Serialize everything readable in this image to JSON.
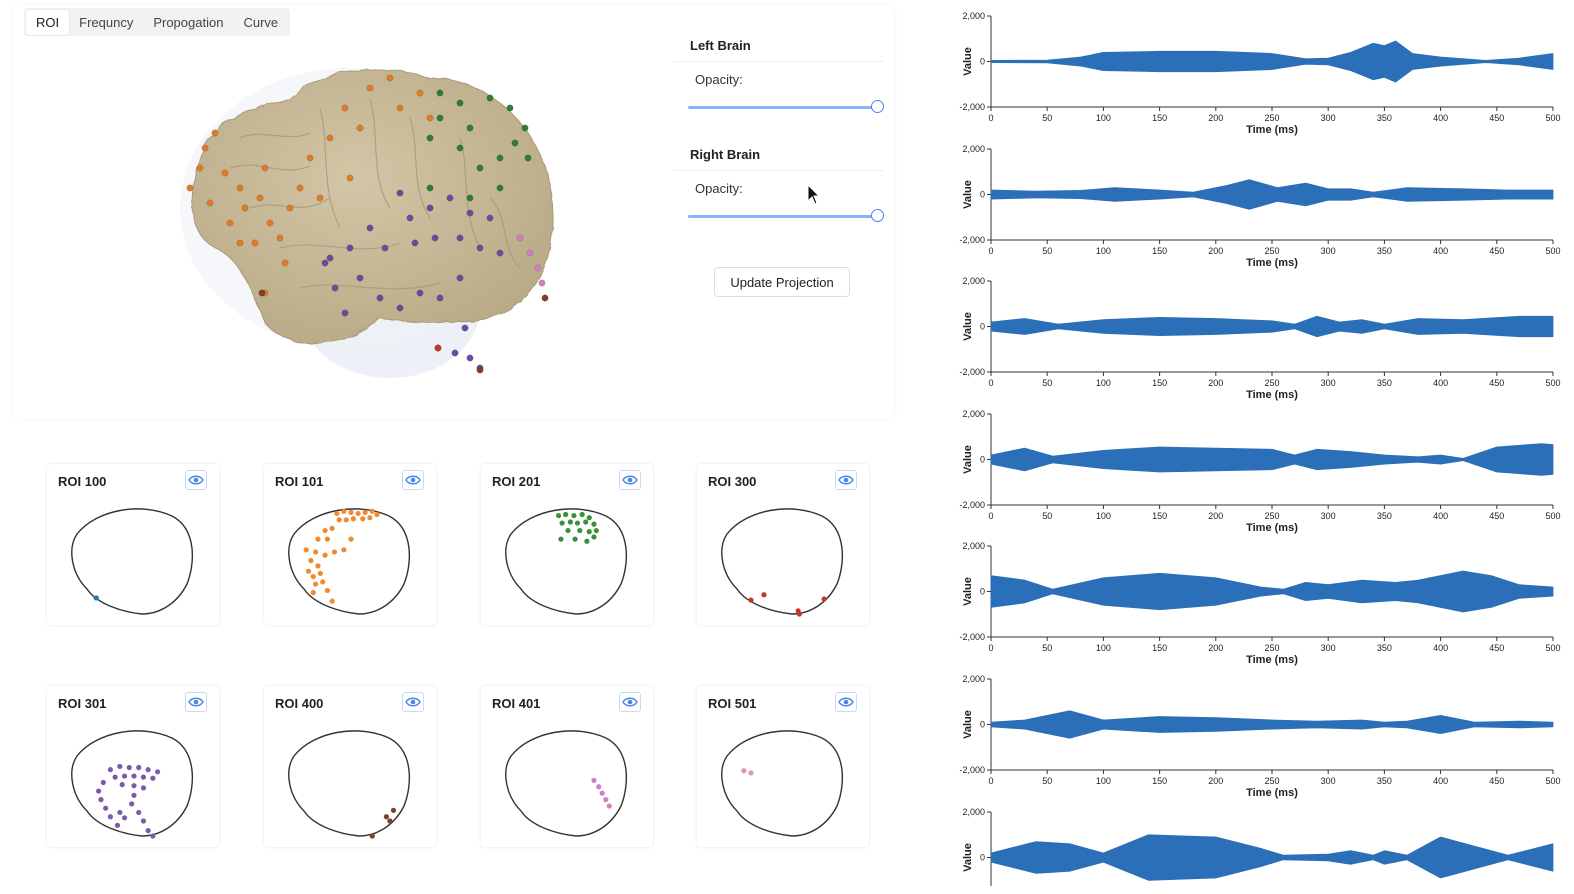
{
  "tabs": [
    {
      "label": "ROI",
      "active": true
    },
    {
      "label": "Frequncy",
      "active": false
    },
    {
      "label": "Propogation",
      "active": false
    },
    {
      "label": "Curve",
      "active": false
    }
  ],
  "controls": {
    "left_brain": {
      "title": "Left Brain",
      "opacity_label": "Opacity:",
      "opacity": 1.0
    },
    "right_brain": {
      "title": "Right Brain",
      "opacity_label": "Opacity:",
      "opacity": 1.0
    },
    "update_button": "Update Projection"
  },
  "icons": {
    "cursor": "mouse-pointer-icon",
    "eye": "eye-icon"
  },
  "colors": {
    "orange": "#e07b2a",
    "green": "#2e7d32",
    "purple": "#6a4c9c",
    "pink": "#d17fc0",
    "red": "#c0392b",
    "blue": "#1f77b4",
    "brown": "#7b3f2b"
  },
  "rois": [
    {
      "title": "ROI 100",
      "color": "#1f77b4",
      "points": [
        [
          0.18,
          0.85
        ]
      ]
    },
    {
      "title": "ROI 101",
      "color": "#f08a2c",
      "points": [
        [
          0.38,
          0.06
        ],
        [
          0.44,
          0.04
        ],
        [
          0.5,
          0.05
        ],
        [
          0.56,
          0.06
        ],
        [
          0.62,
          0.05
        ],
        [
          0.68,
          0.04
        ],
        [
          0.72,
          0.07
        ],
        [
          0.4,
          0.12
        ],
        [
          0.46,
          0.12
        ],
        [
          0.52,
          0.11
        ],
        [
          0.6,
          0.11
        ],
        [
          0.66,
          0.1
        ],
        [
          0.28,
          0.22
        ],
        [
          0.34,
          0.2
        ],
        [
          0.22,
          0.3
        ],
        [
          0.3,
          0.3
        ],
        [
          0.12,
          0.4
        ],
        [
          0.2,
          0.42
        ],
        [
          0.28,
          0.45
        ],
        [
          0.36,
          0.42
        ],
        [
          0.44,
          0.4
        ],
        [
          0.5,
          0.3
        ],
        [
          0.16,
          0.5
        ],
        [
          0.22,
          0.55
        ],
        [
          0.14,
          0.6
        ],
        [
          0.18,
          0.65
        ],
        [
          0.24,
          0.62
        ],
        [
          0.26,
          0.7
        ],
        [
          0.2,
          0.72
        ],
        [
          0.3,
          0.78
        ],
        [
          0.34,
          0.88
        ],
        [
          0.18,
          0.8
        ]
      ]
    },
    {
      "title": "ROI 201",
      "color": "#3a8f3a",
      "points": [
        [
          0.42,
          0.08
        ],
        [
          0.48,
          0.07
        ],
        [
          0.55,
          0.08
        ],
        [
          0.62,
          0.07
        ],
        [
          0.68,
          0.1
        ],
        [
          0.45,
          0.15
        ],
        [
          0.52,
          0.14
        ],
        [
          0.58,
          0.15
        ],
        [
          0.65,
          0.14
        ],
        [
          0.72,
          0.16
        ],
        [
          0.5,
          0.22
        ],
        [
          0.6,
          0.22
        ],
        [
          0.68,
          0.23
        ],
        [
          0.74,
          0.22
        ],
        [
          0.44,
          0.3
        ],
        [
          0.56,
          0.3
        ],
        [
          0.66,
          0.32
        ],
        [
          0.72,
          0.28
        ]
      ]
    },
    {
      "title": "ROI 300",
      "color": "#c0392b",
      "points": [
        [
          0.22,
          0.87
        ],
        [
          0.33,
          0.82
        ],
        [
          0.62,
          0.97
        ],
        [
          0.63,
          1.0
        ],
        [
          0.84,
          0.86
        ]
      ]
    },
    {
      "title": "ROI 301",
      "color": "#7b5ab0",
      "points": [
        [
          0.3,
          0.38
        ],
        [
          0.38,
          0.35
        ],
        [
          0.46,
          0.36
        ],
        [
          0.54,
          0.36
        ],
        [
          0.62,
          0.38
        ],
        [
          0.7,
          0.4
        ],
        [
          0.34,
          0.45
        ],
        [
          0.42,
          0.44
        ],
        [
          0.5,
          0.44
        ],
        [
          0.58,
          0.45
        ],
        [
          0.66,
          0.46
        ],
        [
          0.24,
          0.5
        ],
        [
          0.4,
          0.52
        ],
        [
          0.5,
          0.53
        ],
        [
          0.58,
          0.55
        ],
        [
          0.2,
          0.58
        ],
        [
          0.5,
          0.62
        ],
        [
          0.22,
          0.66
        ],
        [
          0.48,
          0.7
        ],
        [
          0.26,
          0.74
        ],
        [
          0.38,
          0.78
        ],
        [
          0.54,
          0.78
        ],
        [
          0.3,
          0.82
        ],
        [
          0.42,
          0.83
        ],
        [
          0.58,
          0.86
        ],
        [
          0.36,
          0.9
        ],
        [
          0.62,
          0.95
        ],
        [
          0.66,
          1.0
        ]
      ]
    },
    {
      "title": "ROI 400",
      "color": "#7b3f2b",
      "points": [
        [
          0.86,
          0.76
        ],
        [
          0.8,
          0.82
        ],
        [
          0.83,
          0.86
        ],
        [
          0.68,
          1.0
        ]
      ]
    },
    {
      "title": "ROI 401",
      "color": "#d17fc0",
      "points": [
        [
          0.72,
          0.48
        ],
        [
          0.76,
          0.54
        ],
        [
          0.79,
          0.6
        ],
        [
          0.82,
          0.66
        ],
        [
          0.85,
          0.72
        ]
      ]
    },
    {
      "title": "ROI 501",
      "color": "#d79aa8",
      "points": [
        [
          0.16,
          0.39
        ],
        [
          0.22,
          0.41
        ]
      ]
    }
  ],
  "chart_data": [
    {
      "type": "area",
      "title": "",
      "xlabel": "Time (ms)",
      "ylabel": "Value",
      "x_ticks": [
        0,
        50,
        100,
        150,
        200,
        250,
        300,
        350,
        400,
        450,
        500
      ],
      "y_ticks": [
        "2,000",
        "0",
        "-2,000"
      ],
      "ylim": [
        -2000,
        2000
      ],
      "envelope": [
        [
          0,
          50
        ],
        [
          50,
          60
        ],
        [
          80,
          200
        ],
        [
          100,
          400
        ],
        [
          150,
          450
        ],
        [
          200,
          450
        ],
        [
          250,
          350
        ],
        [
          280,
          120
        ],
        [
          300,
          150
        ],
        [
          320,
          400
        ],
        [
          340,
          800
        ],
        [
          350,
          700
        ],
        [
          360,
          900
        ],
        [
          375,
          350
        ],
        [
          400,
          200
        ],
        [
          440,
          50
        ],
        [
          470,
          150
        ],
        [
          500,
          350
        ]
      ]
    },
    {
      "type": "area",
      "title": "",
      "xlabel": "Time (ms)",
      "ylabel": "Value",
      "x_ticks": [
        0,
        50,
        100,
        150,
        200,
        250,
        300,
        350,
        400,
        450,
        500
      ],
      "y_ticks": [
        "2,000",
        "0",
        "-2,000"
      ],
      "ylim": [
        -2000,
        2000
      ],
      "envelope": [
        [
          0,
          200
        ],
        [
          40,
          150
        ],
        [
          80,
          180
        ],
        [
          110,
          300
        ],
        [
          150,
          200
        ],
        [
          180,
          100
        ],
        [
          210,
          400
        ],
        [
          230,
          650
        ],
        [
          255,
          300
        ],
        [
          280,
          500
        ],
        [
          300,
          250
        ],
        [
          320,
          250
        ],
        [
          340,
          100
        ],
        [
          370,
          300
        ],
        [
          420,
          250
        ],
        [
          460,
          200
        ],
        [
          500,
          200
        ]
      ]
    },
    {
      "type": "area",
      "title": "",
      "xlabel": "Time (ms)",
      "ylabel": "Value",
      "x_ticks": [
        0,
        50,
        100,
        150,
        200,
        250,
        300,
        350,
        400,
        450,
        500
      ],
      "y_ticks": [
        "2,000",
        "0",
        "-2,000"
      ],
      "ylim": [
        -2000,
        2000
      ],
      "envelope": [
        [
          0,
          200
        ],
        [
          30,
          350
        ],
        [
          60,
          100
        ],
        [
          100,
          300
        ],
        [
          150,
          400
        ],
        [
          200,
          350
        ],
        [
          250,
          250
        ],
        [
          270,
          100
        ],
        [
          290,
          450
        ],
        [
          310,
          200
        ],
        [
          330,
          300
        ],
        [
          350,
          100
        ],
        [
          380,
          350
        ],
        [
          420,
          300
        ],
        [
          470,
          450
        ],
        [
          500,
          450
        ]
      ]
    },
    {
      "type": "area",
      "title": "",
      "xlabel": "Time (ms)",
      "ylabel": "Value",
      "x_ticks": [
        0,
        50,
        100,
        150,
        200,
        250,
        300,
        350,
        400,
        450,
        500
      ],
      "y_ticks": [
        "2,000",
        "0",
        "-2,000"
      ],
      "ylim": [
        -2000,
        2000
      ],
      "envelope": [
        [
          0,
          200
        ],
        [
          30,
          500
        ],
        [
          55,
          150
        ],
        [
          100,
          400
        ],
        [
          150,
          550
        ],
        [
          200,
          500
        ],
        [
          250,
          450
        ],
        [
          270,
          200
        ],
        [
          290,
          450
        ],
        [
          320,
          350
        ],
        [
          350,
          200
        ],
        [
          380,
          120
        ],
        [
          400,
          200
        ],
        [
          420,
          50
        ],
        [
          450,
          550
        ],
        [
          490,
          700
        ],
        [
          500,
          650
        ]
      ]
    },
    {
      "type": "area",
      "title": "",
      "xlabel": "Time (ms)",
      "ylabel": "Value",
      "x_ticks": [
        0,
        50,
        100,
        150,
        200,
        250,
        300,
        350,
        400,
        450,
        500
      ],
      "y_ticks": [
        "2,000",
        "0",
        "-2,000"
      ],
      "ylim": [
        -2000,
        2000
      ],
      "envelope": [
        [
          0,
          700
        ],
        [
          30,
          500
        ],
        [
          55,
          100
        ],
        [
          100,
          600
        ],
        [
          150,
          800
        ],
        [
          200,
          600
        ],
        [
          240,
          200
        ],
        [
          260,
          100
        ],
        [
          280,
          400
        ],
        [
          300,
          300
        ],
        [
          330,
          500
        ],
        [
          360,
          400
        ],
        [
          380,
          500
        ],
        [
          420,
          900
        ],
        [
          445,
          700
        ],
        [
          470,
          300
        ],
        [
          500,
          200
        ]
      ]
    },
    {
      "type": "area",
      "title": "",
      "xlabel": "Time (ms)",
      "ylabel": "Value",
      "x_ticks": [
        0,
        50,
        100,
        150,
        200,
        250,
        300,
        350,
        400,
        450,
        500
      ],
      "y_ticks": [
        "2,000",
        "0",
        "-2,000"
      ],
      "ylim": [
        -2000,
        2000
      ],
      "envelope": [
        [
          0,
          100
        ],
        [
          30,
          200
        ],
        [
          70,
          600
        ],
        [
          100,
          200
        ],
        [
          150,
          350
        ],
        [
          200,
          300
        ],
        [
          250,
          200
        ],
        [
          290,
          150
        ],
        [
          330,
          200
        ],
        [
          350,
          100
        ],
        [
          370,
          150
        ],
        [
          400,
          400
        ],
        [
          430,
          100
        ],
        [
          470,
          150
        ],
        [
          500,
          100
        ]
      ]
    },
    {
      "type": "area",
      "title": "",
      "xlabel": "",
      "ylabel": "Value",
      "x_ticks": [],
      "y_ticks": [
        "2,000",
        "0"
      ],
      "ylim": [
        -2000,
        2000
      ],
      "envelope": [
        [
          0,
          200
        ],
        [
          40,
          700
        ],
        [
          70,
          600
        ],
        [
          100,
          200
        ],
        [
          140,
          1000
        ],
        [
          200,
          900
        ],
        [
          240,
          400
        ],
        [
          260,
          100
        ],
        [
          300,
          150
        ],
        [
          320,
          300
        ],
        [
          340,
          100
        ],
        [
          350,
          300
        ],
        [
          370,
          100
        ],
        [
          400,
          900
        ],
        [
          430,
          500
        ],
        [
          460,
          100
        ],
        [
          500,
          600
        ]
      ]
    }
  ]
}
